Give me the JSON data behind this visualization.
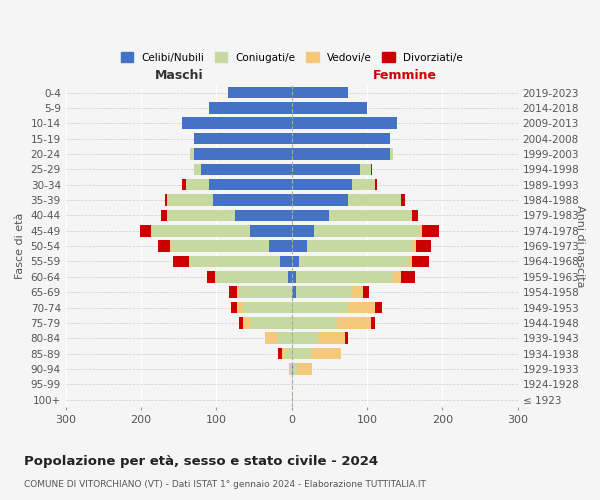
{
  "age_groups": [
    "100+",
    "95-99",
    "90-94",
    "85-89",
    "80-84",
    "75-79",
    "70-74",
    "65-69",
    "60-64",
    "55-59",
    "50-54",
    "45-49",
    "40-44",
    "35-39",
    "30-34",
    "25-29",
    "20-24",
    "15-19",
    "10-14",
    "5-9",
    "0-4"
  ],
  "birth_years": [
    "≤ 1923",
    "1924-1928",
    "1929-1933",
    "1934-1938",
    "1939-1943",
    "1944-1948",
    "1949-1953",
    "1954-1958",
    "1959-1963",
    "1964-1968",
    "1969-1973",
    "1974-1978",
    "1979-1983",
    "1984-1988",
    "1989-1993",
    "1994-1998",
    "1999-2003",
    "2004-2008",
    "2009-2013",
    "2014-2018",
    "2019-2023"
  ],
  "maschi": {
    "celibi": [
      0,
      0,
      0,
      0,
      0,
      0,
      0,
      0,
      5,
      15,
      30,
      55,
      75,
      105,
      110,
      120,
      130,
      130,
      145,
      110,
      85
    ],
    "coniugati": [
      0,
      0,
      2,
      8,
      20,
      55,
      65,
      70,
      95,
      120,
      130,
      130,
      90,
      60,
      30,
      10,
      5,
      0,
      0,
      0,
      0
    ],
    "vedovi": [
      0,
      0,
      2,
      5,
      15,
      10,
      8,
      3,
      2,
      2,
      2,
      2,
      0,
      0,
      0,
      0,
      0,
      0,
      0,
      0,
      0
    ],
    "divorziati": [
      0,
      0,
      0,
      5,
      0,
      5,
      8,
      10,
      10,
      20,
      15,
      15,
      8,
      3,
      5,
      0,
      0,
      0,
      0,
      0,
      0
    ]
  },
  "femmine": {
    "nubili": [
      0,
      0,
      2,
      0,
      0,
      0,
      0,
      5,
      5,
      10,
      20,
      30,
      50,
      75,
      80,
      90,
      130,
      130,
      140,
      100,
      75
    ],
    "coniugate": [
      0,
      0,
      5,
      25,
      35,
      60,
      75,
      75,
      130,
      145,
      140,
      140,
      110,
      70,
      30,
      15,
      5,
      0,
      0,
      0,
      0
    ],
    "vedove": [
      1,
      2,
      20,
      40,
      35,
      45,
      35,
      15,
      10,
      5,
      5,
      3,
      0,
      0,
      0,
      0,
      0,
      0,
      0,
      0,
      0
    ],
    "divorziate": [
      0,
      0,
      0,
      0,
      5,
      5,
      10,
      8,
      18,
      22,
      20,
      22,
      8,
      5,
      3,
      2,
      0,
      0,
      0,
      0,
      0
    ]
  },
  "colors": {
    "celibi": "#4472c4",
    "coniugati": "#c5d9a0",
    "vedovi": "#f5c97a",
    "divorziati": "#cc0000"
  },
  "title": "Popolazione per età, sesso e stato civile - 2024",
  "subtitle": "COMUNE DI VITORCHIANO (VT) - Dati ISTAT 1° gennaio 2024 - Elaborazione TUTTITALIA.IT",
  "xlabel_left": "Maschi",
  "xlabel_right": "Femmine",
  "ylabel_left": "Fasce di età",
  "ylabel_right": "Anni di nascita",
  "xlim": 300,
  "legend_labels": [
    "Celibi/Nubili",
    "Coniugati/e",
    "Vedovi/e",
    "Divorziati/e"
  ],
  "background_color": "#f5f5f5"
}
